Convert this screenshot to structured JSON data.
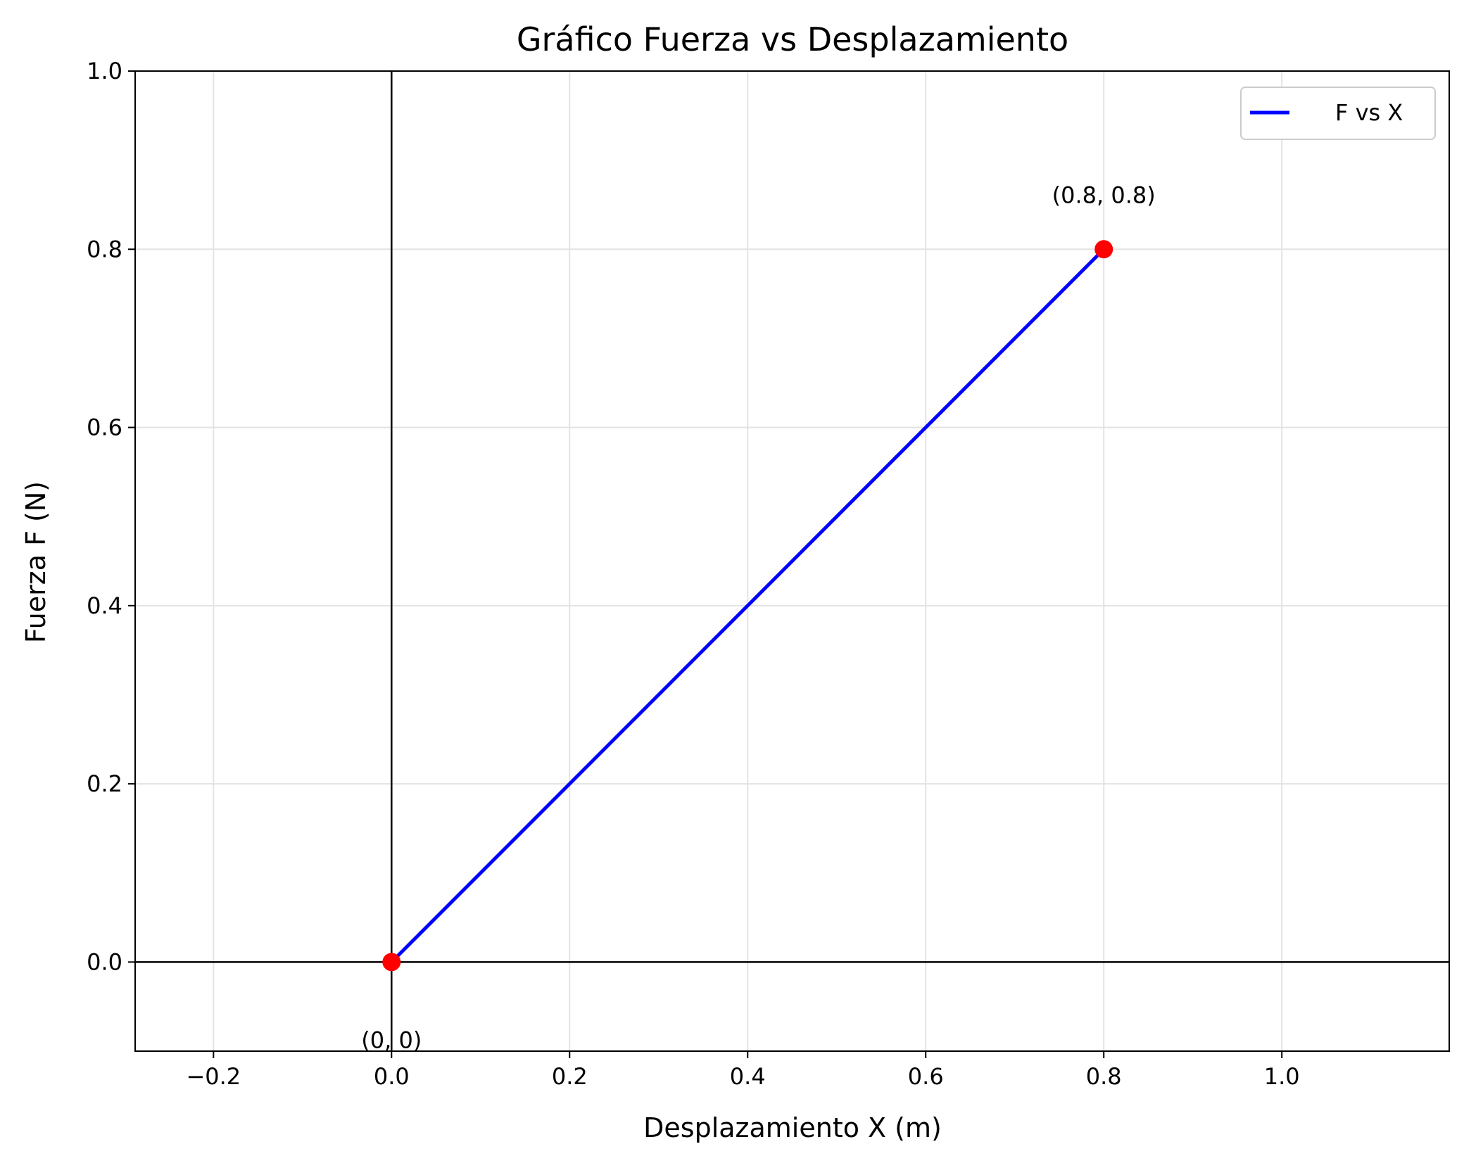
{
  "chart_data": {
    "type": "line",
    "title": "Gráfico Fuerza vs Desplazamiento",
    "xlabel": "Desplazamiento X (m)",
    "ylabel": "Fuerza F (N)",
    "xlim": [
      -0.288,
      1.188
    ],
    "ylim": [
      -0.1,
      1.0
    ],
    "xticks": [
      -0.2,
      0.0,
      0.2,
      0.4,
      0.6,
      0.8,
      1.0
    ],
    "xtick_labels": [
      "−0.2",
      "0.0",
      "0.2",
      "0.4",
      "0.6",
      "0.8",
      "1.0"
    ],
    "yticks": [
      0.0,
      0.2,
      0.4,
      0.6,
      0.8,
      1.0
    ],
    "ytick_labels": [
      "0.0",
      "0.2",
      "0.4",
      "0.6",
      "0.8",
      "1.0"
    ],
    "grid": true,
    "reference_lines": {
      "x": 0,
      "y": 0
    },
    "series": [
      {
        "name": "F vs X",
        "color": "#0000ff",
        "x": [
          0,
          0.8
        ],
        "y": [
          0,
          0.8
        ]
      }
    ],
    "points": [
      {
        "x": 0,
        "y": 0,
        "color": "#ff0000",
        "label": "(0, 0)"
      },
      {
        "x": 0.8,
        "y": 0.8,
        "color": "#ff0000",
        "label": "(0.8, 0.8)"
      }
    ],
    "legend": {
      "position": "top-right",
      "entries": [
        "F vs X"
      ]
    }
  }
}
